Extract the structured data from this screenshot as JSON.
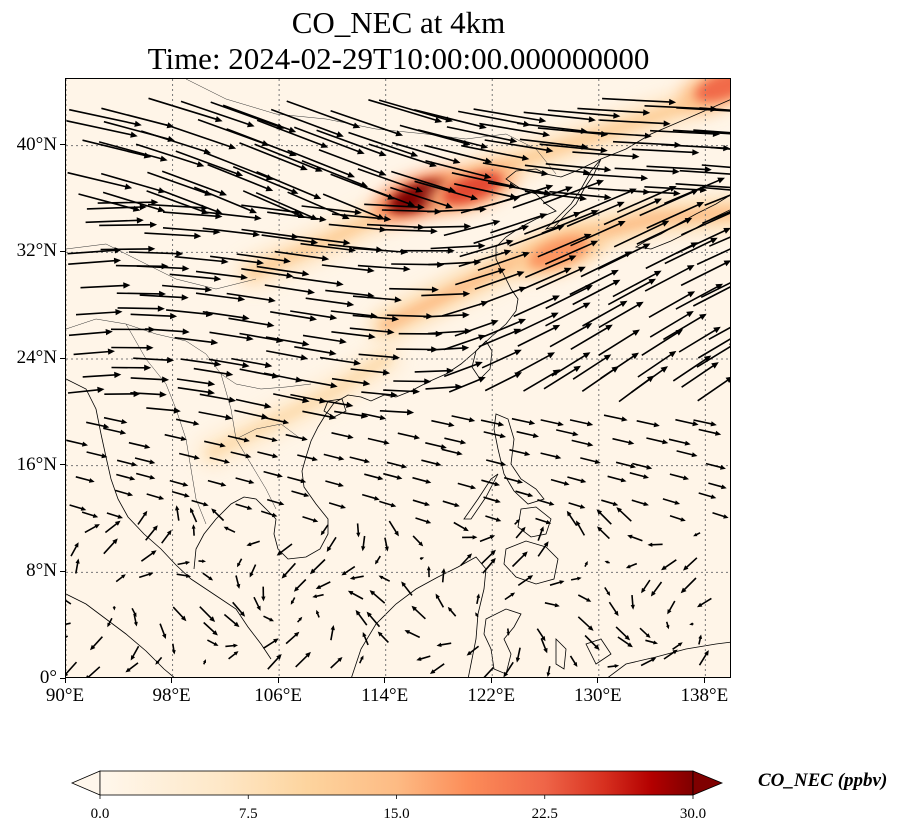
{
  "title": {
    "line1": "CO_NEC at 4km",
    "line2": "Time: 2024-02-29T10:00:00.000000000"
  },
  "map": {
    "lon_range": [
      90,
      140
    ],
    "lat_range": [
      0,
      45
    ],
    "gridlines": true,
    "lon_ticks": [
      {
        "value": 90,
        "label": "90°E"
      },
      {
        "value": 98,
        "label": "98°E"
      },
      {
        "value": 106,
        "label": "106°E"
      },
      {
        "value": 114,
        "label": "114°E"
      },
      {
        "value": 122,
        "label": "122°E"
      },
      {
        "value": 130,
        "label": "130°E"
      },
      {
        "value": 138,
        "label": "138°E"
      }
    ],
    "lat_ticks": [
      {
        "value": 0,
        "label": "0°"
      },
      {
        "value": 8,
        "label": "8°N"
      },
      {
        "value": 16,
        "label": "16°N"
      },
      {
        "value": 24,
        "label": "24°N"
      },
      {
        "value": 32,
        "label": "32°N"
      },
      {
        "value": 40,
        "label": "40°N"
      }
    ],
    "background_color": "#fff5e8",
    "plume_colors": [
      "#fde0bd",
      "#fcc18c",
      "#f4a06a",
      "#e4582e",
      "#b11410",
      "#7a0000"
    ]
  },
  "chart_data": {
    "type": "heatmap",
    "variable": "CO_NEC",
    "units": "ppbv",
    "colorbar": {
      "label": "CO_NEC (ppbv)",
      "min": 0.0,
      "max": 30.0,
      "ticks": [
        "0.0",
        "7.5",
        "15.0",
        "22.5",
        "30.0"
      ],
      "extend": "both",
      "colormap": "OrRd"
    },
    "hotspots": [
      {
        "lon": 116.5,
        "lat": 36.2,
        "value": 30
      },
      {
        "lon": 120.5,
        "lat": 36.8,
        "value": 24
      },
      {
        "lon": 127,
        "lat": 32,
        "value": 18
      },
      {
        "lon": 139.5,
        "lat": 44.5,
        "value": 22
      }
    ],
    "plumes": [
      {
        "value": 12,
        "points": [
          [
            104,
            30.5
          ],
          [
            110,
            33
          ],
          [
            116,
            36
          ],
          [
            120,
            37.5
          ],
          [
            126,
            39.5
          ],
          [
            132,
            41.5
          ],
          [
            138,
            43.5
          ]
        ]
      },
      {
        "value": 15,
        "points": [
          [
            114,
            26.5
          ],
          [
            119,
            29
          ],
          [
            124,
            31.5
          ],
          [
            128,
            33
          ],
          [
            134,
            34.5
          ],
          [
            140,
            35
          ]
        ]
      },
      {
        "value": 9,
        "points": [
          [
            101,
            17
          ],
          [
            106,
            19.5
          ],
          [
            110,
            21.5
          ],
          [
            114,
            24
          ]
        ]
      }
    ],
    "wind_vectors": true
  }
}
